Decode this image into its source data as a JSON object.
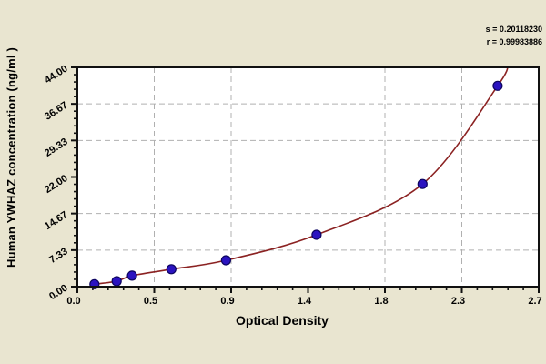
{
  "chart_data": {
    "type": "scatter",
    "title": "",
    "xlabel": "Optical Density",
    "ylabel": "Human YWHAZ concentration (ng/ml )",
    "xlim": [
      0,
      2.7
    ],
    "ylim": [
      0,
      44
    ],
    "grid": "dashed",
    "legend": "none",
    "x_ticks": [
      {
        "value": 0.0,
        "label": "0.0"
      },
      {
        "value": 0.45,
        "label": "0.5"
      },
      {
        "value": 0.9,
        "label": "0.9"
      },
      {
        "value": 1.35,
        "label": "1.4"
      },
      {
        "value": 1.8,
        "label": "1.8"
      },
      {
        "value": 2.25,
        "label": "2.3"
      },
      {
        "value": 2.7,
        "label": "2.7"
      }
    ],
    "y_ticks": [
      {
        "value": 0,
        "label": "0.00"
      },
      {
        "value": 7.33,
        "label": "7.33"
      },
      {
        "value": 14.67,
        "label": "14.67"
      },
      {
        "value": 22,
        "label": "22.00"
      },
      {
        "value": 29.33,
        "label": "29.33"
      },
      {
        "value": 36.67,
        "label": "36.67"
      },
      {
        "value": 44,
        "label": "44.00"
      }
    ],
    "minor_ticks_per_interval": 4,
    "points": [
      {
        "od": 0.1,
        "conc": 0.5
      },
      {
        "od": 0.23,
        "conc": 1.1
      },
      {
        "od": 0.32,
        "conc": 2.2
      },
      {
        "od": 0.55,
        "conc": 3.5
      },
      {
        "od": 0.87,
        "conc": 5.3
      },
      {
        "od": 1.4,
        "conc": 10.4
      },
      {
        "od": 2.02,
        "conc": 20.6
      },
      {
        "od": 2.46,
        "conc": 40.3
      }
    ],
    "curve_exit": {
      "od": 2.52,
      "conc": 44.8
    },
    "annotations": {
      "s_line": "s = 0.20118230",
      "r_line": "r = 0.99983886"
    },
    "colors": {
      "background": "#e9e5d0",
      "plot_background": "#ffffff",
      "frame": "#111111",
      "grid": "#b0b0b0",
      "curve": "#8b2222",
      "point_fill": "#2b13c0",
      "point_stroke": "#0d0560",
      "text": "#000000"
    }
  }
}
